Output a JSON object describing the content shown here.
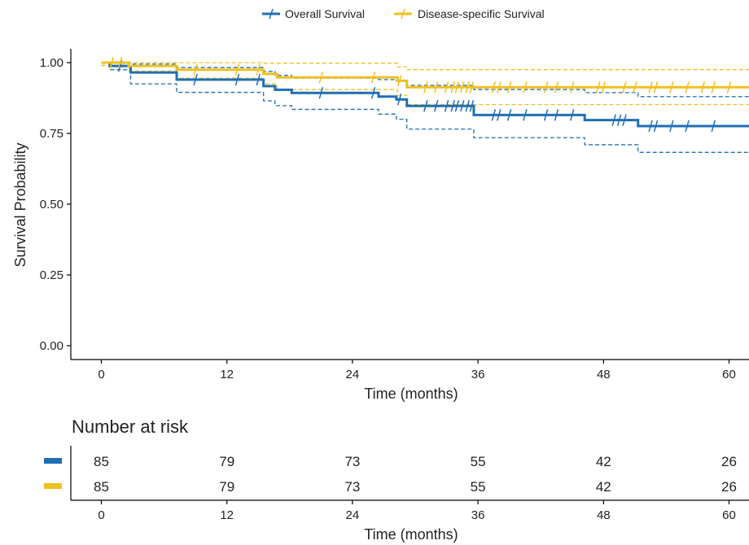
{
  "colors": {
    "overall": "#1F6FB4",
    "disease_specific": "#EFC01E"
  },
  "chart_data": [
    {
      "type": "line",
      "subtype": "kaplan-meier",
      "title": "",
      "xlabel": "Time (months)",
      "ylabel": "Survival Probability",
      "xlim": [
        -3,
        63
      ],
      "ylim": [
        -0.04,
        1.05
      ],
      "xticks": [
        "0",
        "12",
        "24",
        "36",
        "48",
        "60"
      ],
      "yticks": [
        "0.00",
        "0.25",
        "0.50",
        "0.75",
        "1.00"
      ],
      "grid": false,
      "legend": {
        "position": "top",
        "entries": [
          "Overall Survival",
          "Disease-specific Survival"
        ]
      },
      "series": [
        {
          "name": "Overall Survival",
          "color_key": "overall",
          "steps": [
            [
              0,
              1.0
            ],
            [
              0.8,
              0.988
            ],
            [
              2.8,
              0.965
            ],
            [
              7.2,
              0.94
            ],
            [
              15.5,
              0.917
            ],
            [
              16.6,
              0.904
            ],
            [
              18.2,
              0.893
            ],
            [
              26.5,
              0.88
            ],
            [
              28.2,
              0.87
            ],
            [
              29.2,
              0.847
            ],
            [
              35.6,
              0.815
            ],
            [
              46.2,
              0.797
            ],
            [
              51.3,
              0.776
            ],
            [
              63,
              0.776
            ]
          ],
          "lower": [
            [
              0,
              0.99
            ],
            [
              0.8,
              0.975
            ],
            [
              2.8,
              0.925
            ],
            [
              7.2,
              0.895
            ],
            [
              15.5,
              0.865
            ],
            [
              16.6,
              0.848
            ],
            [
              18.2,
              0.835
            ],
            [
              26.5,
              0.818
            ],
            [
              28.2,
              0.8
            ],
            [
              29.2,
              0.765
            ],
            [
              35.6,
              0.735
            ],
            [
              46.2,
              0.71
            ],
            [
              51.3,
              0.683
            ],
            [
              63,
              0.683
            ]
          ],
          "upper": [
            [
              0,
              1.0
            ],
            [
              2.8,
              0.995
            ],
            [
              7.2,
              0.983
            ],
            [
              15.5,
              0.969
            ],
            [
              16.6,
              0.955
            ],
            [
              18.2,
              0.945
            ],
            [
              26.5,
              0.94
            ],
            [
              28.2,
              0.935
            ],
            [
              29.2,
              0.92
            ],
            [
              35.6,
              0.905
            ],
            [
              46.2,
              0.894
            ],
            [
              51.3,
              0.88
            ],
            [
              63,
              0.88
            ]
          ],
          "censor_times": [
            1.8,
            9,
            13,
            15,
            21,
            26,
            28.5,
            31,
            32,
            33,
            33.6,
            34,
            34.5,
            35,
            35.4,
            37.5,
            38,
            39,
            40.5,
            42.5,
            43.5,
            45,
            49,
            49.5,
            50,
            52.5,
            53,
            54.5,
            56,
            58.5
          ]
        },
        {
          "name": "Disease-specific Survival",
          "color_key": "disease_specific",
          "steps": [
            [
              0,
              1.0
            ],
            [
              2.6,
              0.988
            ],
            [
              7.2,
              0.975
            ],
            [
              15.5,
              0.96
            ],
            [
              16.8,
              0.948
            ],
            [
              28.3,
              0.936
            ],
            [
              29.2,
              0.913
            ],
            [
              63,
              0.913
            ]
          ],
          "lower": [
            [
              0,
              0.99
            ],
            [
              2.6,
              0.97
            ],
            [
              7.2,
              0.945
            ],
            [
              15.5,
              0.925
            ],
            [
              16.8,
              0.905
            ],
            [
              28.3,
              0.885
            ],
            [
              29.2,
              0.852
            ],
            [
              63,
              0.852
            ]
          ],
          "upper": [
            [
              0,
              1.0
            ],
            [
              7.2,
              1.0
            ],
            [
              15.5,
              0.998
            ],
            [
              28.3,
              0.985
            ],
            [
              29.2,
              0.975
            ],
            [
              63,
              0.975
            ]
          ],
          "censor_times": [
            1,
            1.8,
            9,
            13,
            15,
            21,
            26,
            28.5,
            31,
            32,
            33,
            33.6,
            34,
            34.5,
            35,
            35.4,
            37.5,
            38,
            39,
            40.5,
            42.5,
            43.5,
            45,
            47.5,
            48,
            50,
            51,
            52.5,
            53,
            54.5,
            56,
            57.5,
            58.5,
            60
          ]
        }
      ]
    },
    {
      "type": "table",
      "title": "Number at risk",
      "xlabel": "Time (months)",
      "xticks": [
        "0",
        "12",
        "24",
        "36",
        "48",
        "60"
      ],
      "rows": [
        {
          "color_key": "overall",
          "values": [
            "85",
            "79",
            "73",
            "55",
            "42",
            "26"
          ]
        },
        {
          "color_key": "disease_specific",
          "values": [
            "85",
            "79",
            "73",
            "55",
            "42",
            "26"
          ]
        }
      ]
    }
  ]
}
